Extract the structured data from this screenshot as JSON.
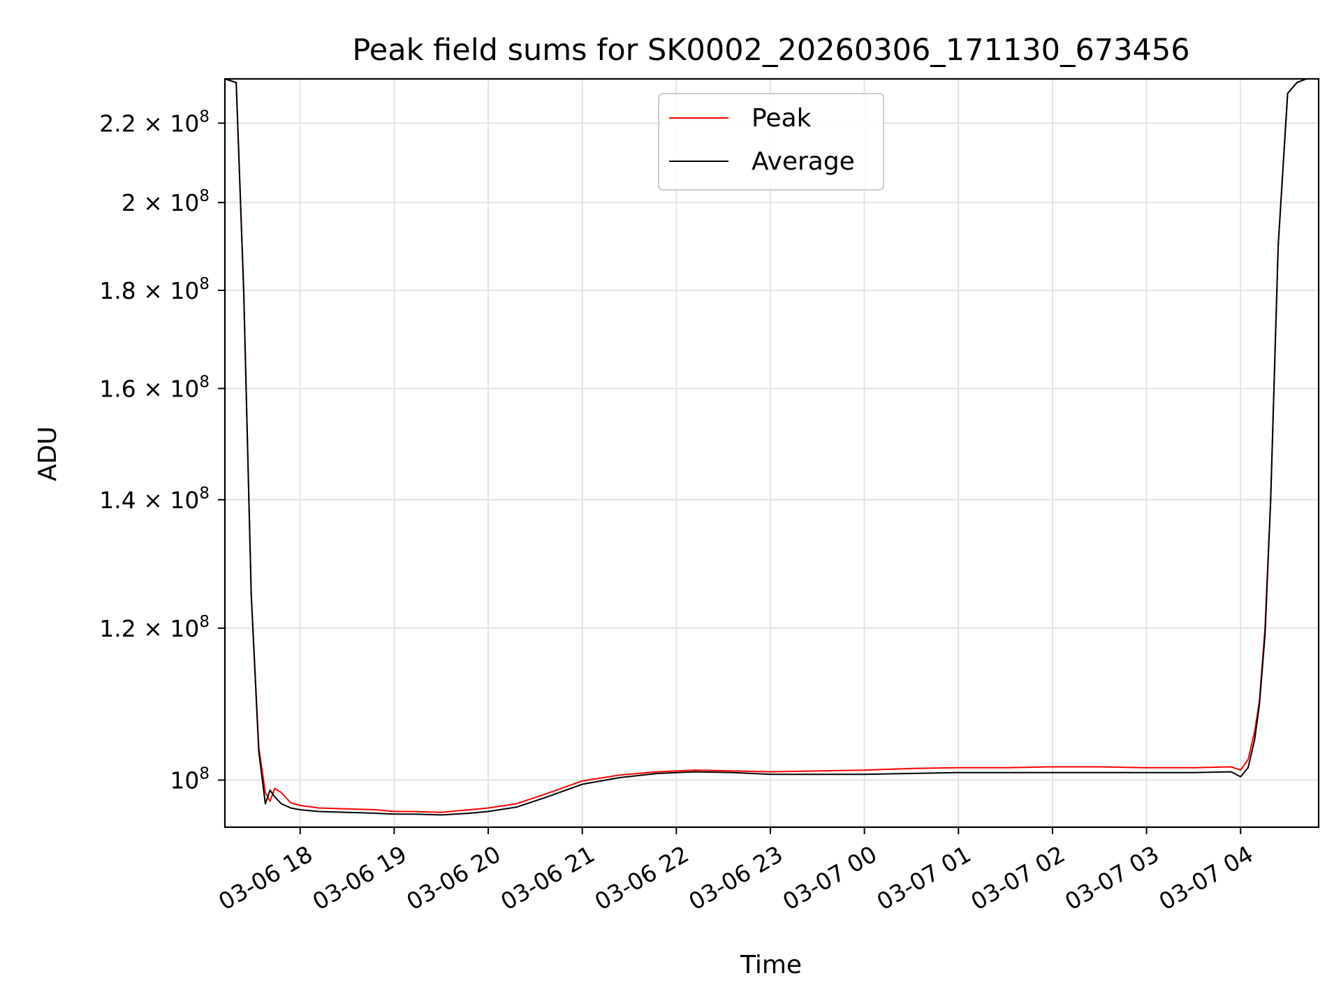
{
  "chart_data": {
    "type": "line",
    "title": "Peak field sums for SK0002_20260306_171130_673456",
    "xlabel": "Time",
    "ylabel": "ADU",
    "yscale": "log",
    "xlim": [
      17.2,
      28.83
    ],
    "ylim": [
      94500000,
      232000000
    ],
    "grid": true,
    "legend_position": "upper-center",
    "x_ticks": [
      {
        "value": 18,
        "label": "03-06 18"
      },
      {
        "value": 19,
        "label": "03-06 19"
      },
      {
        "value": 20,
        "label": "03-06 20"
      },
      {
        "value": 21,
        "label": "03-06 21"
      },
      {
        "value": 22,
        "label": "03-06 22"
      },
      {
        "value": 23,
        "label": "03-06 23"
      },
      {
        "value": 24,
        "label": "03-07 00"
      },
      {
        "value": 25,
        "label": "03-07 01"
      },
      {
        "value": 26,
        "label": "03-07 02"
      },
      {
        "value": 27,
        "label": "03-07 03"
      },
      {
        "value": 28,
        "label": "03-07 04"
      }
    ],
    "y_ticks": [
      {
        "value": 100000000,
        "mantissa": "",
        "exp": "8"
      },
      {
        "value": 120000000,
        "mantissa": "1.2",
        "exp": "8"
      },
      {
        "value": 140000000,
        "mantissa": "1.4",
        "exp": "8"
      },
      {
        "value": 160000000,
        "mantissa": "1.6",
        "exp": "8"
      },
      {
        "value": 180000000,
        "mantissa": "1.8",
        "exp": "8"
      },
      {
        "value": 200000000,
        "mantissa": "2",
        "exp": "8"
      },
      {
        "value": 220000000,
        "mantissa": "2.2",
        "exp": "8"
      }
    ],
    "y_tick_base": "10",
    "series": [
      {
        "name": "Peak",
        "color": "#ff0000",
        "x": [
          17.2,
          17.32,
          17.4,
          17.48,
          17.56,
          17.63,
          17.68,
          17.73,
          17.8,
          17.9,
          18.0,
          18.2,
          18.5,
          18.8,
          19.0,
          19.2,
          19.5,
          19.8,
          20.0,
          20.3,
          20.6,
          21.0,
          21.4,
          21.8,
          22.2,
          22.6,
          23.0,
          23.5,
          24.0,
          24.5,
          25.0,
          25.5,
          26.0,
          26.5,
          27.0,
          27.5,
          27.9,
          28.0,
          28.08,
          28.15,
          28.2,
          28.26,
          28.32,
          28.4,
          28.5,
          28.6,
          28.7,
          28.83
        ],
        "y": [
          232000000,
          231000000,
          180000000,
          125000000,
          104000000,
          98500000,
          97500000,
          99000000,
          98500000,
          97300000,
          97000000,
          96700000,
          96600000,
          96500000,
          96300000,
          96300000,
          96200000,
          96500000,
          96700000,
          97200000,
          98300000,
          99900000,
          100600000,
          101000000,
          101200000,
          101100000,
          101000000,
          101100000,
          101200000,
          101400000,
          101500000,
          101500000,
          101600000,
          101600000,
          101500000,
          101500000,
          101600000,
          101200000,
          102500000,
          106000000,
          110000000,
          120000000,
          140000000,
          190000000,
          228000000,
          231000000,
          232000000,
          232000000
        ]
      },
      {
        "name": "Average",
        "color": "#000000",
        "x": [
          17.2,
          17.32,
          17.4,
          17.48,
          17.56,
          17.63,
          17.68,
          17.73,
          17.8,
          17.9,
          18.0,
          18.2,
          18.5,
          18.8,
          19.0,
          19.2,
          19.5,
          19.8,
          20.0,
          20.3,
          20.6,
          21.0,
          21.4,
          21.8,
          22.2,
          22.6,
          23.0,
          23.5,
          24.0,
          24.5,
          25.0,
          25.5,
          26.0,
          26.5,
          27.0,
          27.5,
          27.9,
          28.0,
          28.08,
          28.15,
          28.2,
          28.26,
          28.32,
          28.4,
          28.5,
          28.6,
          28.7,
          28.83
        ],
        "y": [
          232000000,
          231000000,
          180000000,
          125000000,
          103500000,
          97200000,
          98800000,
          98000000,
          97200000,
          96700000,
          96500000,
          96300000,
          96200000,
          96100000,
          96000000,
          96000000,
          95900000,
          96100000,
          96300000,
          96800000,
          97900000,
          99500000,
          100300000,
          100800000,
          101000000,
          100900000,
          100700000,
          100700000,
          100700000,
          100800000,
          100900000,
          100900000,
          100900000,
          100900000,
          100900000,
          100900000,
          101000000,
          100400000,
          101500000,
          105000000,
          109500000,
          119000000,
          140000000,
          190000000,
          228000000,
          231000000,
          232000000,
          232000000
        ]
      }
    ]
  }
}
